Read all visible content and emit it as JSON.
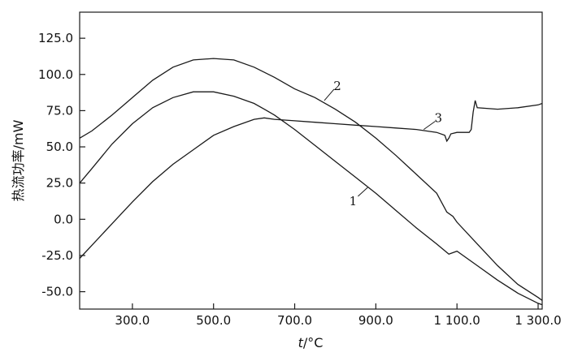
{
  "chart_data": {
    "type": "line",
    "xlabel_var": "t",
    "xlabel_unit": "/°C",
    "ylabel": "热流功率/mW",
    "xlim": [
      170,
      1310
    ],
    "ylim": [
      -62,
      143
    ],
    "x_ticks": [
      300,
      500,
      700,
      900,
      1100,
      1300
    ],
    "x_tick_labels": [
      "300.0",
      "500.0",
      "700.0",
      "900.0",
      "1 100.0",
      "1 300.0"
    ],
    "y_ticks": [
      -50,
      -25,
      0,
      25,
      50,
      75,
      100,
      125
    ],
    "y_tick_labels": [
      "-50.0",
      "-25.0",
      "0.0",
      "25.0",
      "50.0",
      "75.0",
      "100.0",
      "125.0"
    ],
    "grid": false,
    "series": [
      {
        "name": "1",
        "x": [
          170,
          200,
          250,
          300,
          350,
          400,
          450,
          500,
          550,
          600,
          625,
          650,
          700,
          750,
          800,
          850,
          900,
          950,
          1000,
          1050,
          1080,
          1100,
          1150,
          1200,
          1250,
          1300,
          1310
        ],
        "y": [
          25,
          35,
          52,
          66,
          77,
          84,
          88,
          88,
          85,
          80,
          76,
          72,
          62,
          51,
          40,
          29,
          18,
          6,
          -6,
          -17,
          -24,
          -22,
          -32,
          -42,
          -51,
          -58,
          -59
        ]
      },
      {
        "name": "2",
        "x": [
          170,
          200,
          250,
          300,
          350,
          400,
          450,
          500,
          550,
          600,
          650,
          700,
          750,
          800,
          850,
          900,
          950,
          1000,
          1050,
          1075,
          1090,
          1100,
          1150,
          1200,
          1250,
          1300,
          1310
        ],
        "y": [
          56,
          61,
          72,
          84,
          96,
          105,
          110,
          111,
          110,
          105,
          98,
          90,
          84,
          76,
          67,
          56,
          44,
          31,
          18,
          5,
          2,
          -2,
          -17,
          -32,
          -45,
          -54,
          -56
        ]
      },
      {
        "name": "3",
        "x": [
          170,
          200,
          250,
          300,
          350,
          400,
          450,
          500,
          550,
          600,
          625,
          650,
          700,
          750,
          800,
          850,
          900,
          950,
          1000,
          1050,
          1070,
          1075,
          1080,
          1085,
          1100,
          1130,
          1135,
          1140,
          1145,
          1150,
          1200,
          1250,
          1300,
          1310
        ],
        "y": [
          -27,
          -18,
          -3,
          12,
          26,
          38,
          48,
          58,
          64,
          69,
          70,
          69,
          68,
          67,
          66,
          65,
          64,
          63,
          62,
          60,
          58,
          54,
          56,
          59,
          60,
          60,
          62,
          74,
          82,
          77,
          76,
          77,
          79,
          80
        ]
      }
    ],
    "annotations": [
      {
        "text": "1",
        "series": "1",
        "x": 880,
        "y": 22
      },
      {
        "text": "2",
        "series": "2",
        "x": 773,
        "y": 82
      },
      {
        "text": "3",
        "series": "3",
        "x": 1018,
        "y": 62
      }
    ]
  }
}
